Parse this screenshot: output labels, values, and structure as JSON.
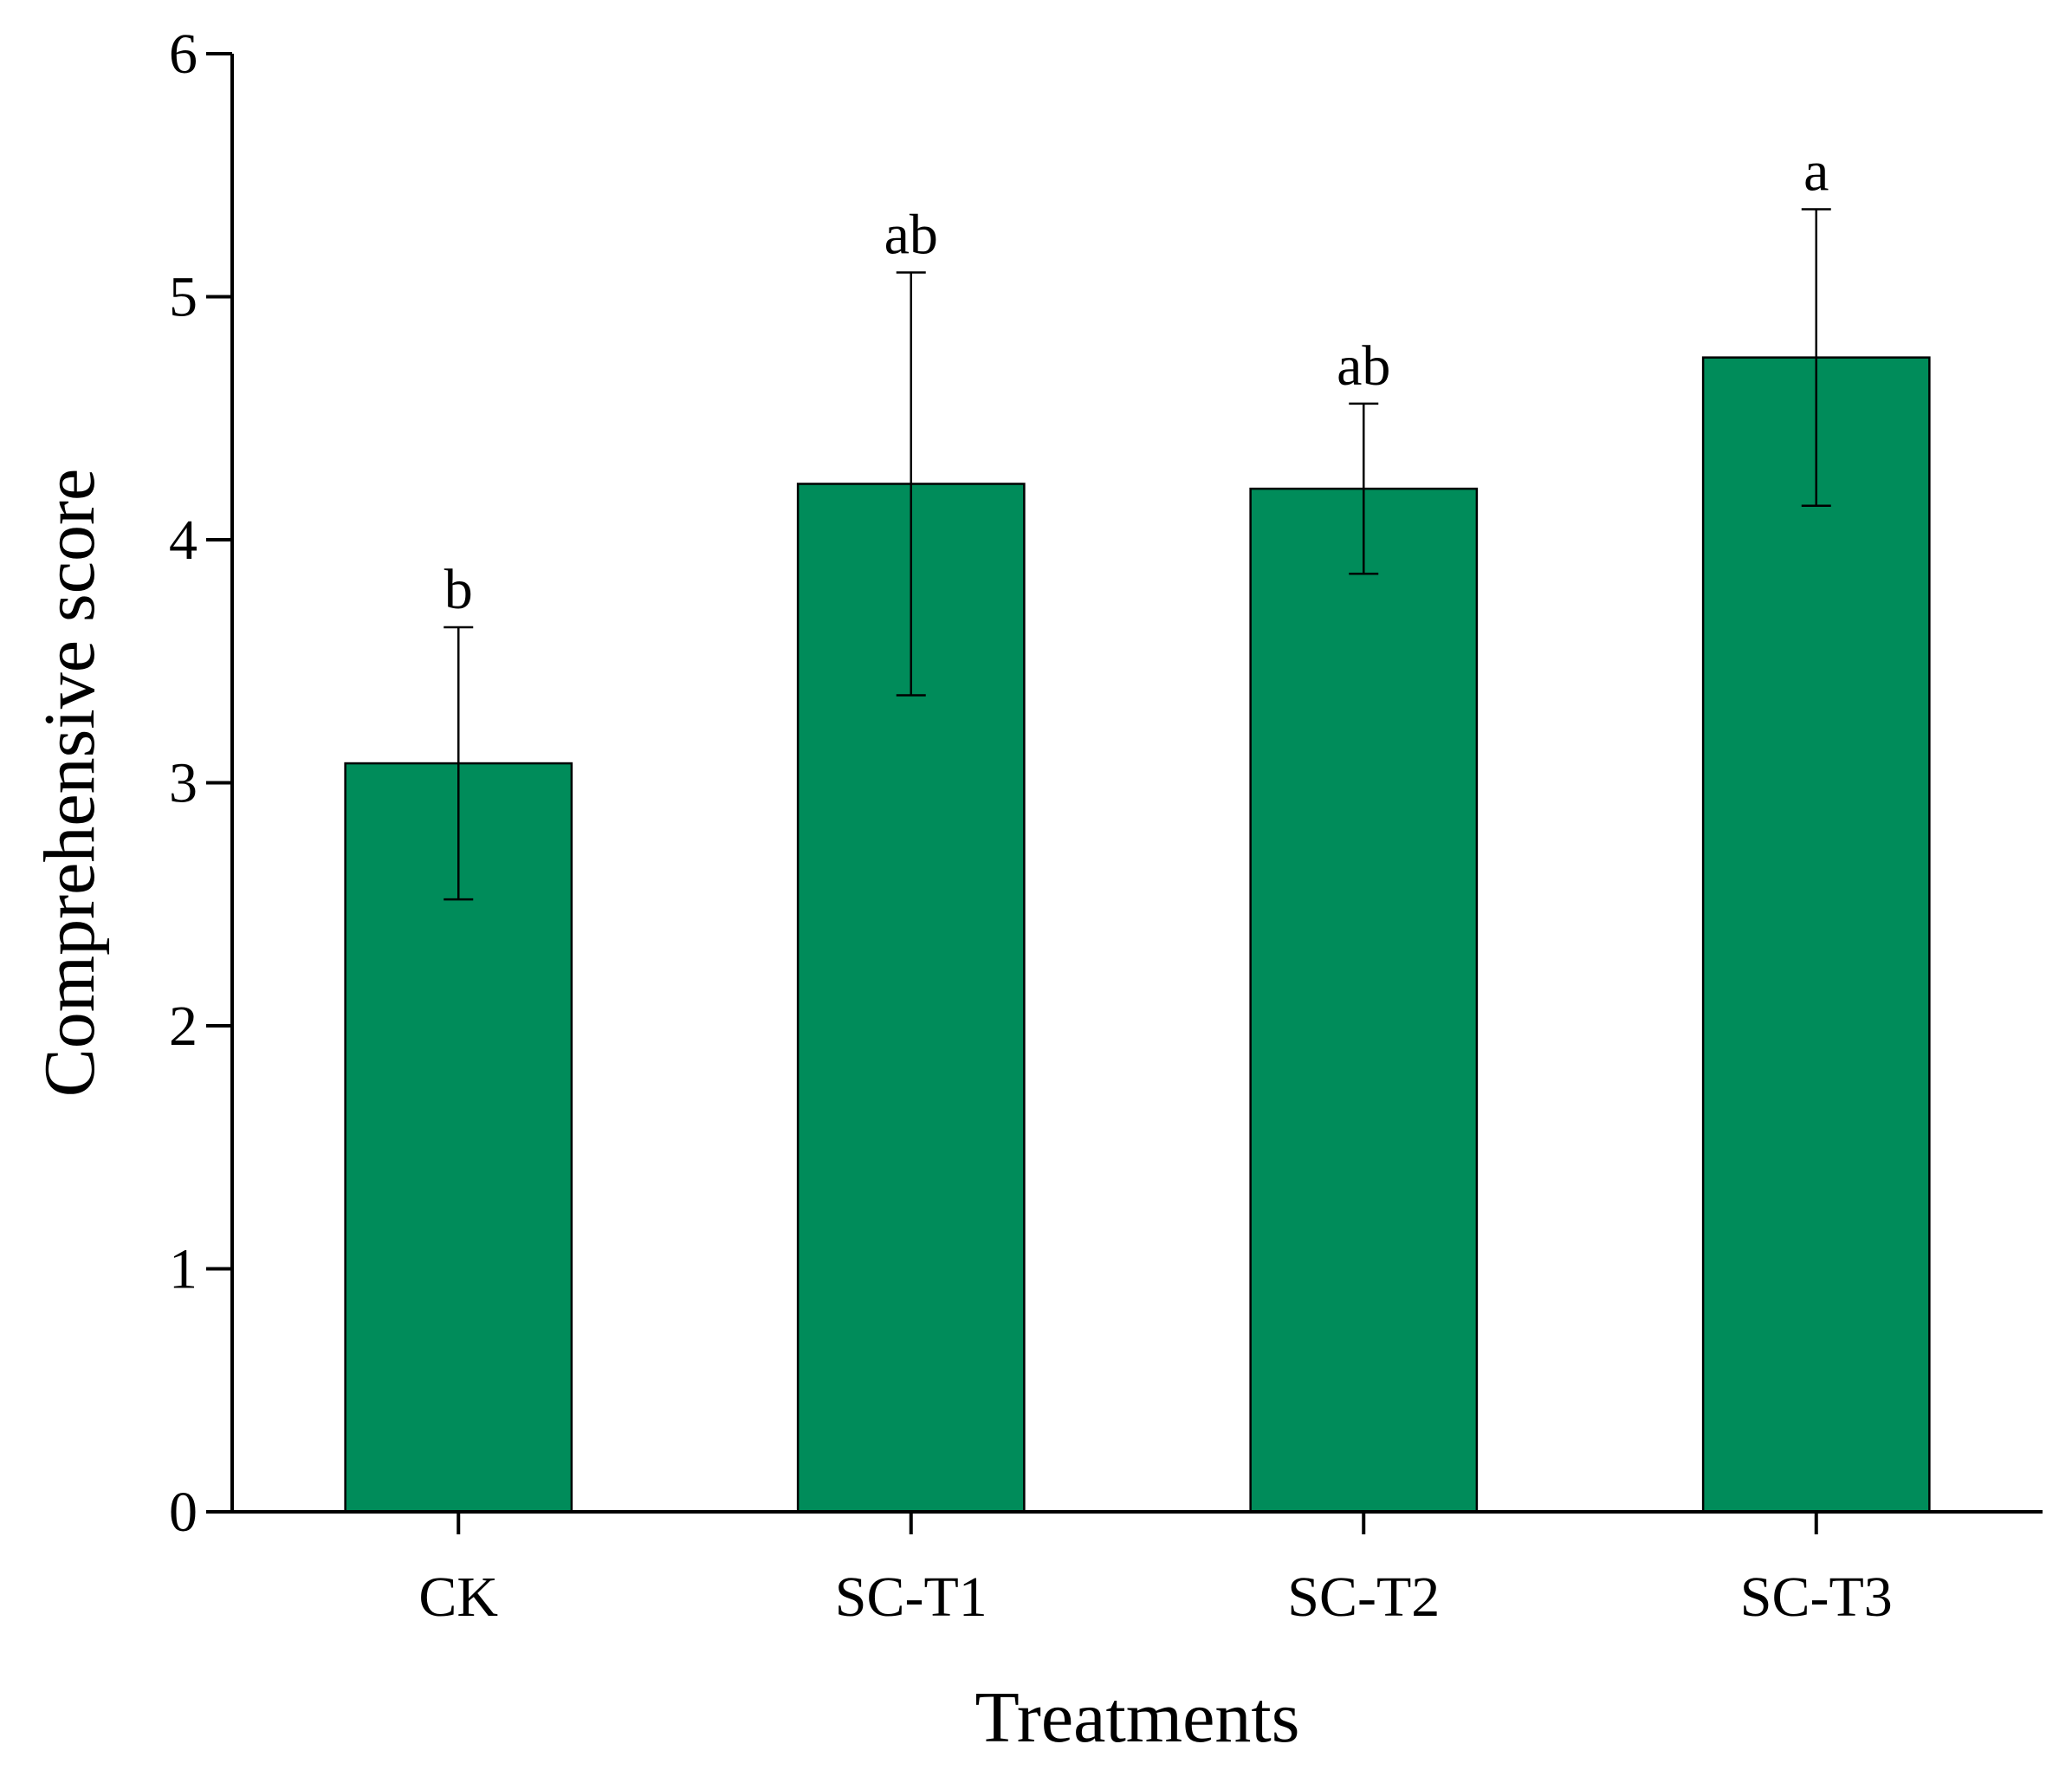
{
  "chart_data": {
    "type": "bar",
    "title": "",
    "xlabel": "Treatments",
    "ylabel": "Comprehensive score",
    "categories": [
      "CK",
      "SC-T1",
      "SC-T2",
      "SC-T3"
    ],
    "values": [
      3.08,
      4.23,
      4.21,
      4.75
    ],
    "errors": [
      0.56,
      0.87,
      0.35,
      0.61
    ],
    "significance": [
      "b",
      "ab",
      "ab",
      "a"
    ],
    "ylim": [
      0,
      6
    ],
    "yticks": [
      "0",
      "1",
      "2",
      "3",
      "4",
      "5",
      "6"
    ],
    "grid": false,
    "bar_color": "#008c5a"
  }
}
